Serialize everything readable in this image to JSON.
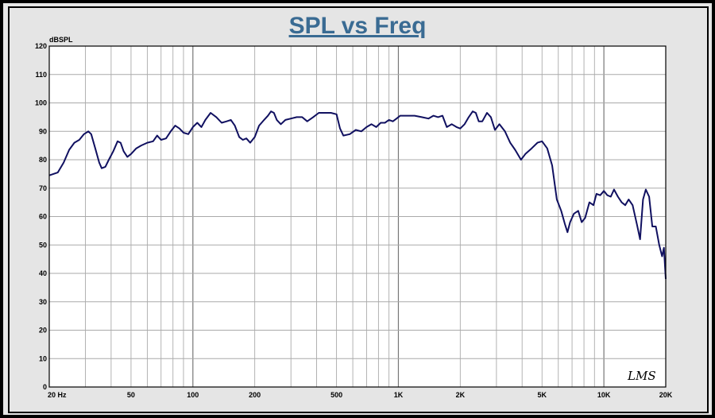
{
  "chart_data": {
    "type": "line",
    "title": "SPL vs Freq",
    "ylabel": "dBSPL",
    "xlabel": "",
    "x_scale": "log",
    "xlim": [
      20,
      20000
    ],
    "ylim": [
      0,
      120
    ],
    "y_ticks": [
      0,
      10,
      20,
      30,
      40,
      50,
      60,
      70,
      80,
      90,
      100,
      110,
      120
    ],
    "x_tick_values": [
      20,
      50,
      100,
      200,
      500,
      1000,
      2000,
      5000,
      10000,
      20000
    ],
    "x_tick_labels": [
      "20 Hz",
      "50",
      "100",
      "200",
      "500",
      "1K",
      "2K",
      "5K",
      "10K",
      "20K"
    ],
    "grid": true,
    "series": [
      {
        "color": "#101060",
        "points": [
          [
            20,
            74.5
          ],
          [
            22,
            75.5
          ],
          [
            23.5,
            79
          ],
          [
            25,
            83.5
          ],
          [
            26.5,
            86
          ],
          [
            28,
            87
          ],
          [
            29.5,
            89
          ],
          [
            31,
            90
          ],
          [
            32,
            89
          ],
          [
            33.5,
            84
          ],
          [
            35,
            79
          ],
          [
            36,
            77
          ],
          [
            37.5,
            77.5
          ],
          [
            39,
            80
          ],
          [
            41,
            83
          ],
          [
            43,
            86.5
          ],
          [
            44.5,
            86
          ],
          [
            46,
            83
          ],
          [
            48,
            81
          ],
          [
            50,
            82
          ],
          [
            53,
            84
          ],
          [
            56,
            85
          ],
          [
            60,
            86
          ],
          [
            64,
            86.5
          ],
          [
            67,
            88.5
          ],
          [
            70,
            87
          ],
          [
            74,
            87.5
          ],
          [
            78,
            90
          ],
          [
            82,
            92
          ],
          [
            86,
            91
          ],
          [
            90,
            89.5
          ],
          [
            95,
            89
          ],
          [
            100,
            91.5
          ],
          [
            105,
            93
          ],
          [
            110,
            91.5
          ],
          [
            115,
            94
          ],
          [
            122,
            96.5
          ],
          [
            130,
            95
          ],
          [
            138,
            93
          ],
          [
            146,
            93.5
          ],
          [
            153,
            94
          ],
          [
            160,
            92
          ],
          [
            168,
            88
          ],
          [
            175,
            87
          ],
          [
            182,
            87.5
          ],
          [
            190,
            86
          ],
          [
            200,
            88
          ],
          [
            210,
            92
          ],
          [
            222,
            94
          ],
          [
            232,
            95.5
          ],
          [
            240,
            97
          ],
          [
            248,
            96.5
          ],
          [
            256,
            94
          ],
          [
            268,
            92.5
          ],
          [
            282,
            94
          ],
          [
            300,
            94.5
          ],
          [
            320,
            95
          ],
          [
            340,
            95
          ],
          [
            360,
            93.5
          ],
          [
            385,
            95
          ],
          [
            410,
            96.5
          ],
          [
            440,
            96.5
          ],
          [
            470,
            96.5
          ],
          [
            500,
            96
          ],
          [
            520,
            91
          ],
          [
            540,
            88.5
          ],
          [
            580,
            89
          ],
          [
            620,
            90.5
          ],
          [
            660,
            90
          ],
          [
            700,
            91.5
          ],
          [
            740,
            92.5
          ],
          [
            780,
            91.5
          ],
          [
            820,
            93
          ],
          [
            860,
            93
          ],
          [
            900,
            94
          ],
          [
            940,
            93.5
          ],
          [
            980,
            94.5
          ],
          [
            1020,
            95.5
          ],
          [
            1100,
            95.5
          ],
          [
            1200,
            95.5
          ],
          [
            1300,
            95
          ],
          [
            1400,
            94.5
          ],
          [
            1480,
            95.5
          ],
          [
            1560,
            95
          ],
          [
            1640,
            95.5
          ],
          [
            1720,
            91.5
          ],
          [
            1820,
            92.5
          ],
          [
            1920,
            91.5
          ],
          [
            2000,
            91
          ],
          [
            2100,
            92.5
          ],
          [
            2200,
            95
          ],
          [
            2300,
            97
          ],
          [
            2380,
            96.5
          ],
          [
            2460,
            93.5
          ],
          [
            2560,
            93.5
          ],
          [
            2700,
            96.5
          ],
          [
            2820,
            95
          ],
          [
            2950,
            90.5
          ],
          [
            3100,
            92.5
          ],
          [
            3300,
            90
          ],
          [
            3500,
            86
          ],
          [
            3700,
            83.5
          ],
          [
            3950,
            80
          ],
          [
            4150,
            82
          ],
          [
            4450,
            84
          ],
          [
            4750,
            86
          ],
          [
            5000,
            86.5
          ],
          [
            5300,
            84
          ],
          [
            5600,
            78
          ],
          [
            5900,
            66
          ],
          [
            6200,
            62
          ],
          [
            6450,
            57.5
          ],
          [
            6650,
            54.5
          ],
          [
            6850,
            58
          ],
          [
            7150,
            61
          ],
          [
            7500,
            62
          ],
          [
            7800,
            58
          ],
          [
            8100,
            59.5
          ],
          [
            8500,
            65
          ],
          [
            8900,
            64
          ],
          [
            9200,
            68
          ],
          [
            9600,
            67.5
          ],
          [
            10000,
            69
          ],
          [
            10400,
            67.5
          ],
          [
            10800,
            67
          ],
          [
            11200,
            69.5
          ],
          [
            11700,
            67
          ],
          [
            12200,
            65
          ],
          [
            12700,
            64
          ],
          [
            13200,
            66
          ],
          [
            13800,
            64
          ],
          [
            14500,
            57
          ],
          [
            15000,
            52
          ],
          [
            15500,
            66
          ],
          [
            16000,
            69.5
          ],
          [
            16600,
            67
          ],
          [
            17200,
            56.5
          ],
          [
            17900,
            56.5
          ],
          [
            18600,
            50
          ],
          [
            19200,
            46
          ],
          [
            19600,
            49
          ],
          [
            20000,
            38
          ]
        ]
      }
    ]
  },
  "logo": {
    "text": "LMS"
  },
  "colors": {
    "background": "#e5e5e5",
    "plot_bg": "#ffffff",
    "title": "#3a6b93",
    "line": "#101060",
    "grid_major": "#777777",
    "grid_minor": "#aaaaaa"
  }
}
